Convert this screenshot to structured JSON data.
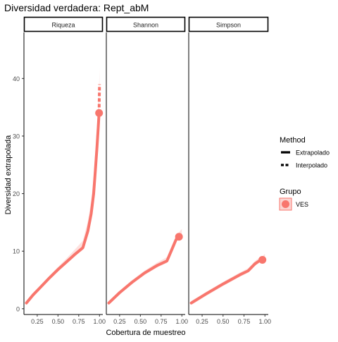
{
  "chart_data": {
    "type": "line",
    "title": "Diversidad verdadera: Rept_abM",
    "xlabel": "Cobertura de muestreo",
    "ylabel": "Diversidad extrapolada",
    "xticks": [
      "0.25",
      "0.50",
      "0.75",
      "1.00"
    ],
    "xtick_values": [
      0.25,
      0.5,
      0.75,
      1.0
    ],
    "xlim": [
      0.09,
      1.04
    ],
    "yticks": [
      "0",
      "10",
      "20",
      "30",
      "40"
    ],
    "ytick_values": [
      0,
      10,
      20,
      30,
      40
    ],
    "ylim": [
      -1,
      48
    ],
    "grid": false,
    "series_color": "#F8766D",
    "legend": {
      "position": "right",
      "method_title": "Method",
      "method_items": [
        {
          "label": "Extrapolado",
          "linetype": "solid"
        },
        {
          "label": "Interpolado",
          "linetype": "dashed"
        }
      ],
      "group_title": "Grupo",
      "group_items": [
        {
          "label": "VES",
          "color": "#F8766D"
        }
      ]
    },
    "facets": [
      {
        "label": "Riqueza",
        "interpolated": [
          [
            0.12,
            1.0
          ],
          [
            0.2,
            2.4
          ],
          [
            0.3,
            3.9
          ],
          [
            0.4,
            5.4
          ],
          [
            0.5,
            6.8
          ],
          [
            0.6,
            8.1
          ],
          [
            0.7,
            9.4
          ],
          [
            0.8,
            10.6
          ],
          [
            0.86,
            13.5
          ],
          [
            0.9,
            16.5
          ],
          [
            0.93,
            20.0
          ],
          [
            0.95,
            24.0
          ],
          [
            0.97,
            28.0
          ],
          [
            0.985,
            31.5
          ],
          [
            0.995,
            34.0
          ]
        ],
        "extrapolated": [
          [
            0.995,
            34.0
          ],
          [
            0.997,
            36.0
          ],
          [
            0.999,
            38.0
          ],
          [
            1.0,
            39.0
          ]
        ],
        "observed": [
          0.995,
          34.0
        ],
        "ribbon_upper_end": 41.5
      },
      {
        "label": "Shannon",
        "interpolated": [
          [
            0.12,
            1.0
          ],
          [
            0.25,
            2.8
          ],
          [
            0.4,
            4.6
          ],
          [
            0.55,
            6.2
          ],
          [
            0.7,
            7.5
          ],
          [
            0.82,
            8.3
          ],
          [
            0.88,
            10.3
          ],
          [
            0.93,
            12.0
          ],
          [
            0.965,
            12.5
          ]
        ],
        "extrapolated": [
          [
            0.965,
            12.5
          ],
          [
            0.98,
            12.6
          ],
          [
            1.0,
            12.7
          ]
        ],
        "observed": [
          0.965,
          12.5
        ],
        "ribbon_upper_end": 13.5
      },
      {
        "label": "Simpson",
        "interpolated": [
          [
            0.12,
            1.0
          ],
          [
            0.3,
            2.6
          ],
          [
            0.5,
            4.3
          ],
          [
            0.7,
            5.9
          ],
          [
            0.8,
            6.6
          ],
          [
            0.88,
            7.8
          ],
          [
            0.93,
            8.3
          ],
          [
            0.97,
            8.5
          ]
        ],
        "extrapolated": [
          [
            0.97,
            8.5
          ],
          [
            0.985,
            8.55
          ],
          [
            1.0,
            8.6
          ]
        ],
        "observed": [
          0.97,
          8.5
        ],
        "ribbon_upper_end": 9.2
      }
    ]
  }
}
